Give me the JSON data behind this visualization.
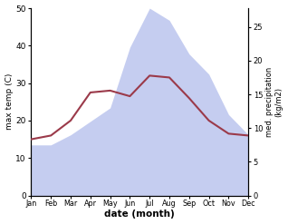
{
  "months": [
    "Jan",
    "Feb",
    "Mar",
    "Apr",
    "May",
    "Jun",
    "Jul",
    "Aug",
    "Sep",
    "Oct",
    "Nov",
    "Dec"
  ],
  "max_temp": [
    15,
    16,
    20,
    27.5,
    28,
    26.5,
    32,
    31.5,
    26,
    20,
    16.5,
    16
  ],
  "precipitation": [
    7.5,
    7.5,
    9,
    11,
    13,
    22,
    27.8,
    26,
    21,
    18,
    12,
    9
  ],
  "temp_color": "#9b3a4a",
  "precip_fill_color": "#c5cdf0",
  "temp_ylim": [
    0,
    50
  ],
  "precip_ylim": [
    0,
    27.8
  ],
  "xlabel": "date (month)",
  "ylabel_left": "max temp (C)",
  "ylabel_right": "med. precipitation\n(kg/m2)",
  "bg_color": "#ffffff",
  "yticks_left": [
    0,
    10,
    20,
    30,
    40,
    50
  ],
  "yticks_right": [
    0,
    5,
    10,
    15,
    20,
    25
  ]
}
